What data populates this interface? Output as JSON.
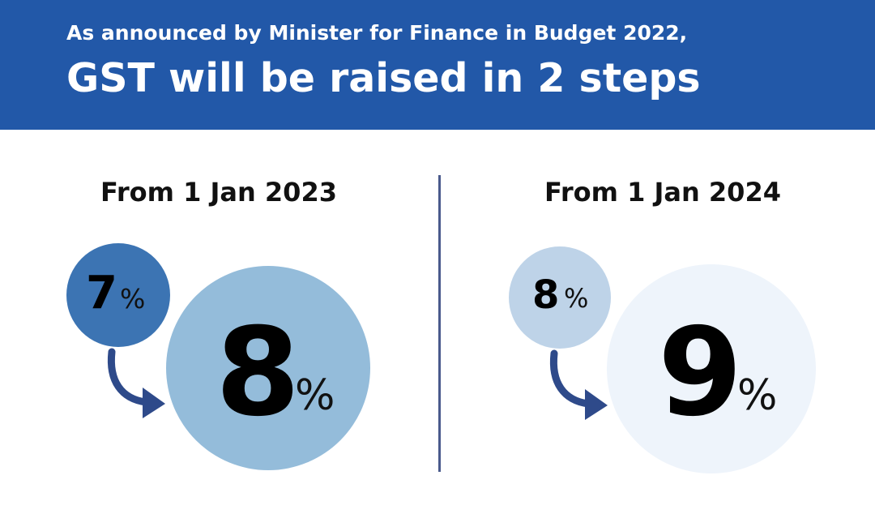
{
  "banner": {
    "subtitle": "As announced by Minister for Finance in Budget 2022,",
    "title": "GST will be raised in 2 steps"
  },
  "steps": [
    {
      "heading": "From 1 Jan 2023",
      "from_value": "7",
      "from_unit": "%",
      "to_value": "8",
      "to_unit": "%"
    },
    {
      "heading": "From 1 Jan 2024",
      "from_value": "8",
      "from_unit": "%",
      "to_value": "9",
      "to_unit": "%"
    }
  ],
  "colors": {
    "banner": "#2258a8",
    "step1_small_circle": "#3c74b3",
    "step1_large_circle": "#94bcda",
    "step2_small_circle": "#bed3e8",
    "step2_large_circle": "#eef4fb",
    "arrow": "#2e4a8a",
    "divider": "#4a5a8c"
  }
}
